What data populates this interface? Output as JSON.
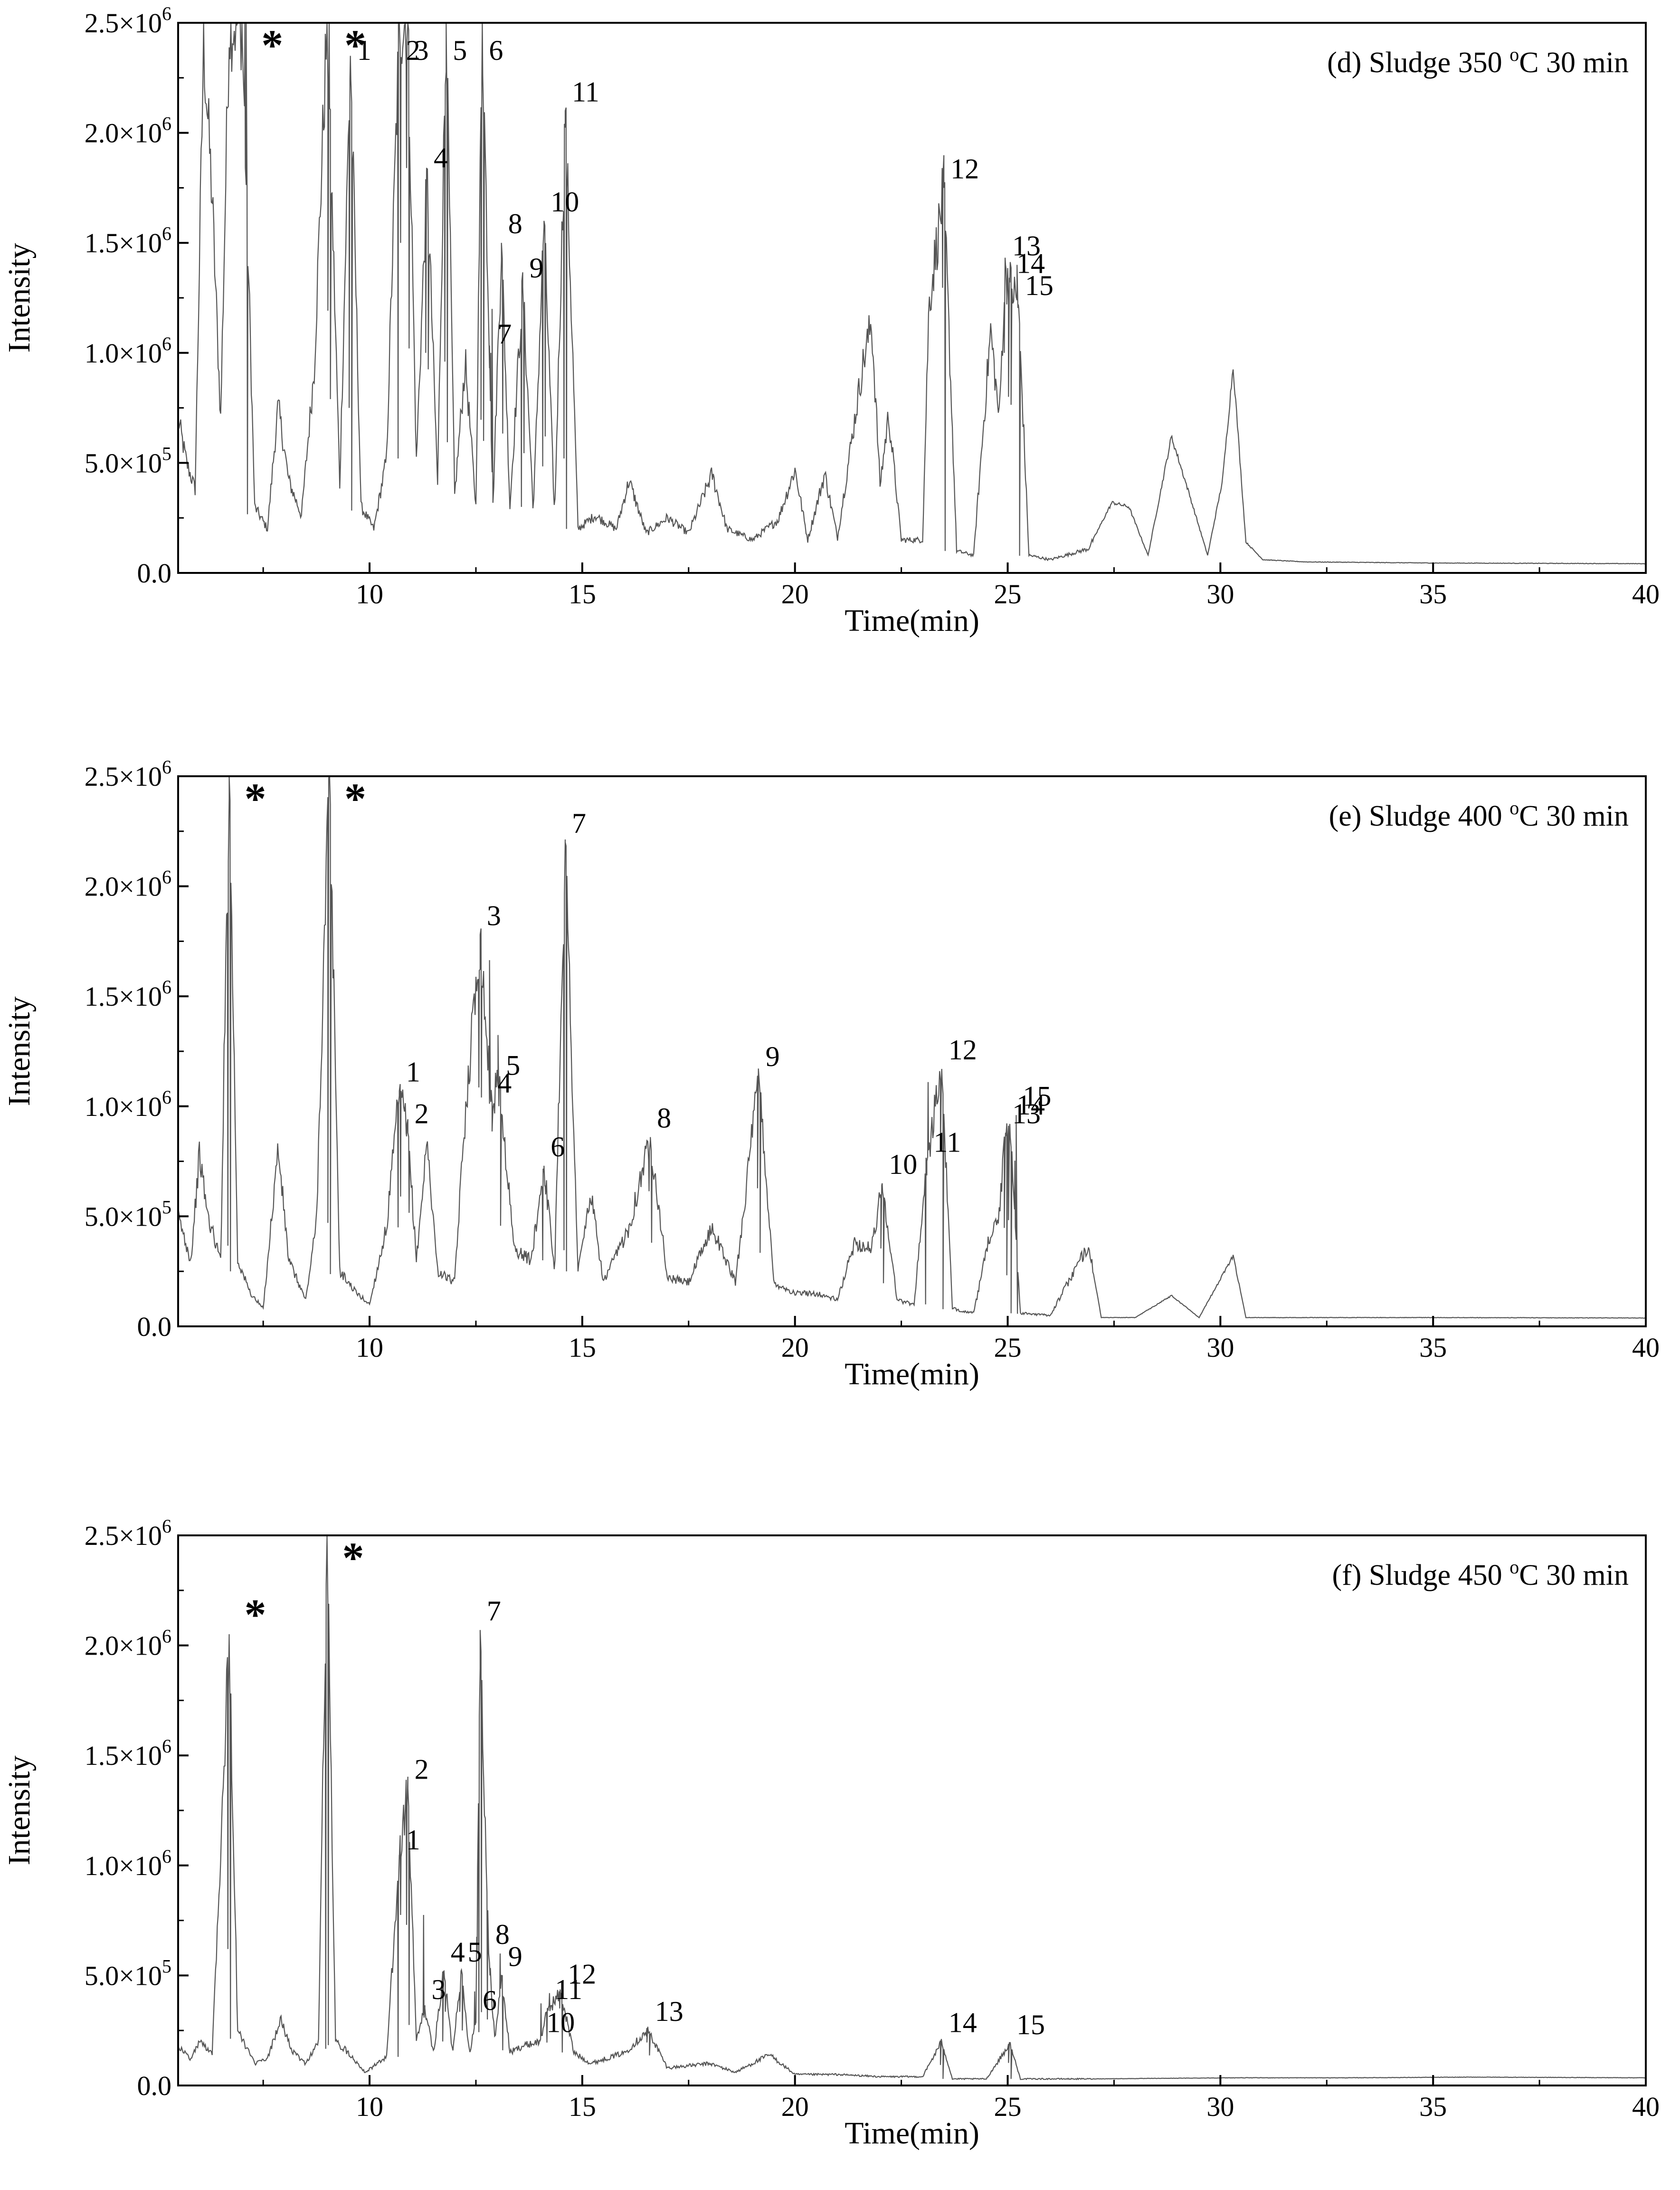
{
  "chart_data": [
    {
      "type": "line",
      "panel_label": {
        "prefix": "(d) Sludge 350 ",
        "sup": "o",
        "suffix": "C 30 min"
      },
      "xlabel": "Time(min)",
      "ylabel": "Intensity",
      "xlim": [
        5.5,
        40
      ],
      "ylim": [
        0,
        2500000
      ],
      "x_ticks": [
        10,
        15,
        20,
        25,
        30,
        35,
        40
      ],
      "y_ticks": [
        {
          "base": "0.0",
          "exp": ""
        },
        {
          "base": "5.0×10",
          "exp": "5"
        },
        {
          "base": "1.0×10",
          "exp": "6"
        },
        {
          "base": "1.5×10",
          "exp": "6"
        },
        {
          "base": "2.0×10",
          "exp": "6"
        },
        {
          "base": "2.5×10",
          "exp": "6"
        }
      ],
      "baseline": [
        [
          5.5,
          700000
        ],
        [
          5.7,
          500000
        ],
        [
          5.9,
          380000
        ],
        [
          6.1,
          2420000
        ],
        [
          6.3,
          1700000
        ],
        [
          6.5,
          700000
        ],
        [
          6.7,
          2500000
        ],
        [
          7.0,
          2500000
        ],
        [
          7.3,
          300000
        ],
        [
          7.6,
          200000
        ],
        [
          7.85,
          760000
        ],
        [
          8.1,
          420000
        ],
        [
          8.4,
          260000
        ],
        [
          8.7,
          930000
        ],
        [
          9.0,
          2500000
        ],
        [
          9.3,
          400000
        ],
        [
          9.55,
          2350000
        ],
        [
          9.8,
          300000
        ],
        [
          10.1,
          200000
        ],
        [
          10.4,
          520000
        ],
        [
          10.7,
          2500000
        ],
        [
          10.9,
          2500000
        ],
        [
          11.1,
          500000
        ],
        [
          11.35,
          1800000
        ],
        [
          11.6,
          400000
        ],
        [
          11.8,
          2500000
        ],
        [
          12.0,
          350000
        ],
        [
          12.25,
          960000
        ],
        [
          12.5,
          300000
        ],
        [
          12.65,
          2500000
        ],
        [
          12.9,
          300000
        ],
        [
          13.1,
          1500000
        ],
        [
          13.3,
          300000
        ],
        [
          13.6,
          1300000
        ],
        [
          13.85,
          280000
        ],
        [
          14.1,
          1600000
        ],
        [
          14.35,
          250000
        ],
        [
          14.6,
          2100000
        ],
        [
          14.9,
          200000
        ],
        [
          15.3,
          260000
        ],
        [
          15.8,
          200000
        ],
        [
          16.1,
          420000
        ],
        [
          16.5,
          180000
        ],
        [
          17.0,
          250000
        ],
        [
          17.5,
          180000
        ],
        [
          18.05,
          450000
        ],
        [
          18.4,
          200000
        ],
        [
          19.0,
          150000
        ],
        [
          19.6,
          240000
        ],
        [
          20.0,
          470000
        ],
        [
          20.3,
          150000
        ],
        [
          20.7,
          450000
        ],
        [
          21.0,
          160000
        ],
        [
          21.45,
          760000
        ],
        [
          21.6,
          950000
        ],
        [
          21.8,
          1140000
        ],
        [
          22.0,
          400000
        ],
        [
          22.2,
          720000
        ],
        [
          22.5,
          150000
        ],
        [
          23.0,
          150000
        ],
        [
          23.15,
          1220000
        ],
        [
          23.5,
          1750000
        ],
        [
          23.8,
          100000
        ],
        [
          24.2,
          80000
        ],
        [
          24.6,
          1100000
        ],
        [
          24.8,
          700000
        ],
        [
          24.95,
          1400000
        ],
        [
          25.05,
          1320000
        ],
        [
          25.25,
          1220000
        ],
        [
          25.5,
          80000
        ],
        [
          26.0,
          60000
        ],
        [
          26.9,
          110000
        ],
        [
          27.45,
          320000
        ],
        [
          27.85,
          300000
        ],
        [
          28.3,
          80000
        ],
        [
          28.85,
          620000
        ],
        [
          29.25,
          370000
        ],
        [
          29.7,
          80000
        ],
        [
          30.05,
          420000
        ],
        [
          30.3,
          940000
        ],
        [
          30.6,
          140000
        ],
        [
          31.0,
          60000
        ],
        [
          32.0,
          50000
        ],
        [
          35.0,
          45000
        ],
        [
          40.0,
          42000
        ]
      ],
      "peaks": [
        {
          "label": "*",
          "x": 7.1,
          "y": 2500000
        },
        {
          "label": "*",
          "x": 9.05,
          "y": 2500000
        },
        {
          "label": "1",
          "x": 9.55,
          "y": 2350000
        },
        {
          "label": "2",
          "x": 10.7,
          "y": 2500000
        },
        {
          "label": "3",
          "x": 10.9,
          "y": 2500000
        },
        {
          "label": "4",
          "x": 11.35,
          "y": 1800000
        },
        {
          "label": "5",
          "x": 11.8,
          "y": 2500000
        },
        {
          "label": "6",
          "x": 12.65,
          "y": 2500000
        },
        {
          "label": "7",
          "x": 12.85,
          "y": 1000000
        },
        {
          "label": "8",
          "x": 13.1,
          "y": 1500000
        },
        {
          "label": "9",
          "x": 13.6,
          "y": 1300000
        },
        {
          "label": "10",
          "x": 14.1,
          "y": 1600000
        },
        {
          "label": "11",
          "x": 14.6,
          "y": 2100000
        },
        {
          "label": "12",
          "x": 23.5,
          "y": 1750000
        },
        {
          "label": "13",
          "x": 24.95,
          "y": 1400000
        },
        {
          "label": "14",
          "x": 25.05,
          "y": 1320000
        },
        {
          "label": "15",
          "x": 25.25,
          "y": 1220000
        }
      ]
    },
    {
      "type": "line",
      "panel_label": {
        "prefix": "(e) Sludge 400 ",
        "sup": "o",
        "suffix": "C 30 min"
      },
      "xlabel": "Time(min)",
      "ylabel": "Intensity",
      "xlim": [
        5.5,
        40
      ],
      "ylim": [
        0,
        2500000
      ],
      "x_ticks": [
        10,
        15,
        20,
        25,
        30,
        35,
        40
      ],
      "y_ticks": [
        {
          "base": "0.0",
          "exp": ""
        },
        {
          "base": "5.0×10",
          "exp": "5"
        },
        {
          "base": "1.0×10",
          "exp": "6"
        },
        {
          "base": "1.5×10",
          "exp": "6"
        },
        {
          "base": "2.0×10",
          "exp": "6"
        },
        {
          "base": "2.5×10",
          "exp": "6"
        }
      ],
      "baseline": [
        [
          5.5,
          500000
        ],
        [
          5.8,
          300000
        ],
        [
          6.0,
          780000
        ],
        [
          6.2,
          500000
        ],
        [
          6.5,
          300000
        ],
        [
          6.7,
          2500000
        ],
        [
          6.9,
          300000
        ],
        [
          7.2,
          150000
        ],
        [
          7.5,
          80000
        ],
        [
          7.85,
          810000
        ],
        [
          8.1,
          300000
        ],
        [
          8.5,
          120000
        ],
        [
          8.75,
          470000
        ],
        [
          9.05,
          2500000
        ],
        [
          9.3,
          250000
        ],
        [
          9.7,
          150000
        ],
        [
          10.0,
          100000
        ],
        [
          10.4,
          450000
        ],
        [
          10.7,
          1070000
        ],
        [
          10.9,
          880000
        ],
        [
          11.1,
          300000
        ],
        [
          11.35,
          840000
        ],
        [
          11.6,
          250000
        ],
        [
          12.0,
          200000
        ],
        [
          12.25,
          970000
        ],
        [
          12.6,
          1780000
        ],
        [
          12.85,
          1020000
        ],
        [
          13.05,
          1100000
        ],
        [
          13.4,
          350000
        ],
        [
          13.8,
          300000
        ],
        [
          14.1,
          730000
        ],
        [
          14.35,
          250000
        ],
        [
          14.6,
          2200000
        ],
        [
          14.9,
          250000
        ],
        [
          15.2,
          600000
        ],
        [
          15.5,
          200000
        ],
        [
          16.1,
          450000
        ],
        [
          16.6,
          860000
        ],
        [
          17.0,
          220000
        ],
        [
          17.5,
          200000
        ],
        [
          18.05,
          450000
        ],
        [
          18.6,
          200000
        ],
        [
          19.15,
          1140000
        ],
        [
          19.5,
          200000
        ],
        [
          20.0,
          150000
        ],
        [
          20.5,
          150000
        ],
        [
          21.0,
          120000
        ],
        [
          21.4,
          380000
        ],
        [
          21.8,
          350000
        ],
        [
          22.05,
          650000
        ],
        [
          22.4,
          120000
        ],
        [
          22.8,
          100000
        ],
        [
          23.1,
          750000
        ],
        [
          23.45,
          1170000
        ],
        [
          23.7,
          80000
        ],
        [
          24.2,
          60000
        ],
        [
          24.6,
          430000
        ],
        [
          24.8,
          500000
        ],
        [
          24.95,
          880000
        ],
        [
          25.05,
          920000
        ],
        [
          25.3,
          60000
        ],
        [
          26.0,
          50000
        ],
        [
          26.9,
          370000
        ],
        [
          27.2,
          40000
        ],
        [
          28.0,
          40000
        ],
        [
          28.85,
          140000
        ],
        [
          29.5,
          40000
        ],
        [
          30.3,
          320000
        ],
        [
          30.6,
          40000
        ],
        [
          32.0,
          40000
        ],
        [
          35.0,
          40000
        ],
        [
          40.0,
          38000
        ]
      ],
      "peaks": [
        {
          "label": "*",
          "x": 6.7,
          "y": 2500000
        },
        {
          "label": "*",
          "x": 9.05,
          "y": 2500000
        },
        {
          "label": "1",
          "x": 10.7,
          "y": 1070000
        },
        {
          "label": "2",
          "x": 10.9,
          "y": 880000
        },
        {
          "label": "3",
          "x": 12.6,
          "y": 1780000
        },
        {
          "label": "4",
          "x": 12.85,
          "y": 1020000
        },
        {
          "label": "5",
          "x": 13.05,
          "y": 1100000
        },
        {
          "label": "6",
          "x": 14.1,
          "y": 730000
        },
        {
          "label": "7",
          "x": 14.6,
          "y": 2200000
        },
        {
          "label": "8",
          "x": 16.6,
          "y": 860000
        },
        {
          "label": "9",
          "x": 19.15,
          "y": 1140000
        },
        {
          "label": "10",
          "x": 22.05,
          "y": 650000
        },
        {
          "label": "11",
          "x": 23.1,
          "y": 750000
        },
        {
          "label": "12",
          "x": 23.45,
          "y": 1170000
        },
        {
          "label": "13",
          "x": 24.95,
          "y": 880000
        },
        {
          "label": "14",
          "x": 25.05,
          "y": 920000
        },
        {
          "label": "15",
          "x": 25.2,
          "y": 960000
        }
      ]
    },
    {
      "type": "line",
      "panel_label": {
        "prefix": "(f) Sludge 450 ",
        "sup": "o",
        "suffix": "C 30 min"
      },
      "xlabel": "Time(min)",
      "ylabel": "Intensity",
      "xlim": [
        5.5,
        40
      ],
      "ylim": [
        0,
        2500000
      ],
      "x_ticks": [
        10,
        15,
        20,
        25,
        30,
        35,
        40
      ],
      "y_ticks": [
        {
          "base": "0.0",
          "exp": ""
        },
        {
          "base": "5.0×10",
          "exp": "5"
        },
        {
          "base": "1.0×10",
          "exp": "6"
        },
        {
          "base": "1.5×10",
          "exp": "6"
        },
        {
          "base": "2.0×10",
          "exp": "6"
        },
        {
          "base": "2.5×10",
          "exp": "6"
        }
      ],
      "baseline": [
        [
          5.5,
          180000
        ],
        [
          5.8,
          120000
        ],
        [
          6.0,
          200000
        ],
        [
          6.3,
          150000
        ],
        [
          6.7,
          2030000
        ],
        [
          6.9,
          250000
        ],
        [
          7.3,
          100000
        ],
        [
          7.6,
          120000
        ],
        [
          7.9,
          300000
        ],
        [
          8.2,
          150000
        ],
        [
          8.5,
          100000
        ],
        [
          8.8,
          200000
        ],
        [
          9.0,
          2500000
        ],
        [
          9.2,
          200000
        ],
        [
          9.5,
          150000
        ],
        [
          9.9,
          60000
        ],
        [
          10.4,
          130000
        ],
        [
          10.7,
          1030000
        ],
        [
          10.9,
          1350000
        ],
        [
          11.1,
          200000
        ],
        [
          11.3,
          350000
        ],
        [
          11.5,
          150000
        ],
        [
          11.75,
          520000
        ],
        [
          11.95,
          150000
        ],
        [
          12.15,
          520000
        ],
        [
          12.35,
          150000
        ],
        [
          12.5,
          300000
        ],
        [
          12.6,
          2070000
        ],
        [
          12.8,
          600000
        ],
        [
          12.95,
          200000
        ],
        [
          13.1,
          500000
        ],
        [
          13.3,
          150000
        ],
        [
          13.6,
          180000
        ],
        [
          14.0,
          200000
        ],
        [
          14.2,
          350000
        ],
        [
          14.5,
          420000
        ],
        [
          14.8,
          150000
        ],
        [
          15.2,
          100000
        ],
        [
          16.0,
          150000
        ],
        [
          16.55,
          250000
        ],
        [
          17.0,
          80000
        ],
        [
          18.0,
          100000
        ],
        [
          18.6,
          60000
        ],
        [
          19.4,
          140000
        ],
        [
          20.0,
          50000
        ],
        [
          21.0,
          50000
        ],
        [
          22.0,
          40000
        ],
        [
          23.0,
          40000
        ],
        [
          23.45,
          200000
        ],
        [
          23.7,
          30000
        ],
        [
          24.5,
          30000
        ],
        [
          25.05,
          190000
        ],
        [
          25.3,
          30000
        ],
        [
          27.0,
          30000
        ],
        [
          30.3,
          35000
        ],
        [
          33.0,
          35000
        ],
        [
          36.0,
          38000
        ],
        [
          40.0,
          35000
        ]
      ],
      "peaks": [
        {
          "label": "*",
          "x": 6.7,
          "y": 2030000
        },
        {
          "label": "*",
          "x": 9.0,
          "y": 2500000
        },
        {
          "label": "1",
          "x": 10.7,
          "y": 1030000
        },
        {
          "label": "2",
          "x": 10.9,
          "y": 1350000
        },
        {
          "label": "3",
          "x": 11.3,
          "y": 350000
        },
        {
          "label": "4",
          "x": 11.75,
          "y": 520000
        },
        {
          "label": "5",
          "x": 12.15,
          "y": 520000
        },
        {
          "label": "6",
          "x": 12.5,
          "y": 300000
        },
        {
          "label": "7",
          "x": 12.6,
          "y": 2070000
        },
        {
          "label": "8",
          "x": 12.8,
          "y": 600000
        },
        {
          "label": "9",
          "x": 13.1,
          "y": 500000
        },
        {
          "label": "10",
          "x": 14.0,
          "y": 200000
        },
        {
          "label": "11",
          "x": 14.2,
          "y": 350000
        },
        {
          "label": "12",
          "x": 14.5,
          "y": 420000
        },
        {
          "label": "13",
          "x": 16.55,
          "y": 250000
        },
        {
          "label": "14",
          "x": 23.45,
          "y": 200000
        },
        {
          "label": "15",
          "x": 25.05,
          "y": 190000
        }
      ]
    }
  ]
}
